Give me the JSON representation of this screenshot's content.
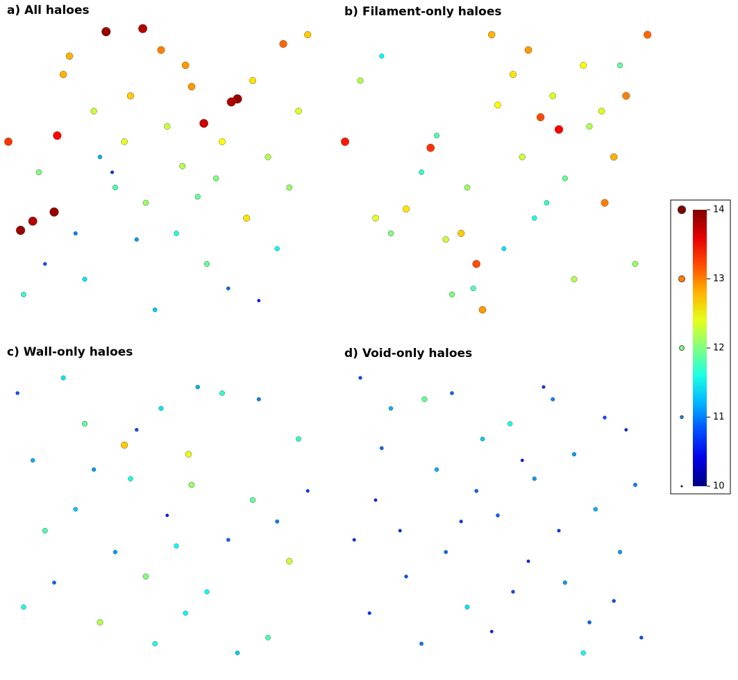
{
  "chart_data": [
    {
      "type": "scatter",
      "title": "a) All haloes",
      "xlim": [
        0,
        100
      ],
      "ylim": [
        0,
        100
      ],
      "colormap": "jet",
      "x": [
        32,
        44,
        75,
        73,
        64,
        16,
        15,
        8,
        4,
        0,
        20,
        50,
        58,
        80,
        90,
        95,
        40,
        28,
        60,
        70,
        85,
        10,
        35,
        45,
        55,
        65,
        25,
        5,
        78,
        88,
        48,
        38,
        68,
        18,
        30,
        52,
        62,
        92,
        12,
        42,
        72,
        82,
        22,
        98,
        34,
        57
      ],
      "y": [
        96,
        97,
        74,
        73,
        66,
        62,
        37,
        34,
        31,
        60,
        88,
        90,
        85,
        80,
        92,
        70,
        75,
        70,
        78,
        60,
        55,
        50,
        45,
        40,
        30,
        20,
        15,
        10,
        35,
        25,
        5,
        60,
        48,
        82,
        55,
        65,
        42,
        45,
        20,
        28,
        12,
        8,
        30,
        95,
        50,
        52
      ],
      "mass": [
        13.9,
        13.8,
        13.9,
        13.8,
        13.7,
        13.5,
        13.9,
        13.8,
        13.9,
        13.3,
        12.8,
        13.0,
        12.9,
        12.6,
        13.1,
        12.4,
        12.7,
        12.3,
        12.9,
        12.5,
        12.2,
        12.0,
        11.8,
        12.1,
        11.6,
        11.9,
        11.4,
        11.7,
        12.6,
        11.5,
        11.3,
        12.4,
        12.0,
        12.8,
        11.2,
        12.3,
        11.9,
        12.1,
        10.8,
        11.1,
        10.9,
        10.6,
        11.0,
        12.7,
        10.7,
        12.2
      ]
    },
    {
      "type": "scatter",
      "title": "b) Filament-only haloes",
      "xlim": [
        0,
        100
      ],
      "ylim": [
        0,
        100
      ],
      "colormap": "jet",
      "x": [
        0,
        28,
        70,
        64,
        85,
        38,
        43,
        45,
        48,
        55,
        60,
        78,
        92,
        99,
        10,
        20,
        33,
        50,
        68,
        88,
        5,
        15,
        40,
        42,
        58,
        72,
        80,
        95,
        25,
        35,
        62,
        75,
        90,
        12,
        30,
        52,
        66,
        84
      ],
      "y": [
        60,
        58,
        64,
        68,
        40,
        30,
        20,
        5,
        95,
        82,
        90,
        85,
        75,
        95,
        35,
        38,
        28,
        72,
        75,
        55,
        80,
        30,
        45,
        12,
        55,
        48,
        65,
        20,
        50,
        10,
        35,
        15,
        85,
        88,
        62,
        25,
        40,
        70
      ],
      "mass": [
        13.4,
        13.3,
        13.5,
        13.2,
        13.0,
        12.7,
        13.2,
        12.9,
        12.8,
        12.6,
        12.9,
        12.5,
        13.0,
        13.1,
        12.4,
        12.6,
        12.3,
        12.5,
        12.4,
        12.8,
        12.2,
        12.0,
        12.1,
        11.8,
        12.3,
        11.9,
        12.2,
        12.1,
        11.7,
        12.0,
        11.6,
        12.2,
        11.9,
        11.5,
        11.8,
        11.4,
        11.7,
        12.4
      ]
    },
    {
      "type": "scatter",
      "title": "c) Wall-only haloes",
      "xlim": [
        0,
        100
      ],
      "ylim": [
        0,
        100
      ],
      "colormap": "jet",
      "x": [
        38,
        59,
        92,
        60,
        25,
        12,
        45,
        70,
        80,
        5,
        30,
        55,
        85,
        95,
        18,
        40,
        65,
        75,
        50,
        8,
        22,
        35,
        48,
        62,
        88,
        15,
        28,
        42,
        58,
        72,
        82,
        98,
        3,
        52
      ],
      "y": [
        73,
        70,
        35,
        60,
        80,
        45,
        30,
        90,
        55,
        20,
        15,
        40,
        10,
        75,
        95,
        62,
        25,
        5,
        85,
        68,
        52,
        38,
        8,
        92,
        48,
        28,
        65,
        78,
        18,
        42,
        88,
        58,
        90,
        50
      ],
      "mass": [
        12.7,
        12.4,
        12.3,
        12.1,
        11.9,
        11.8,
        12.0,
        11.7,
        11.9,
        11.6,
        12.2,
        11.5,
        11.8,
        11.7,
        11.4,
        11.6,
        11.5,
        11.3,
        11.4,
        11.2,
        11.3,
        11.1,
        11.6,
        11.2,
        11.0,
        10.9,
        11.1,
        10.8,
        11.5,
        10.9,
        11.0,
        10.7,
        10.8,
        10.6
      ]
    },
    {
      "type": "scatter",
      "title": "d) Void-only haloes",
      "xlim": [
        0,
        100
      ],
      "ylim": [
        0,
        100
      ],
      "colormap": "jet",
      "x": [
        26,
        54,
        5,
        15,
        35,
        45,
        65,
        75,
        85,
        95,
        10,
        30,
        50,
        70,
        90,
        20,
        40,
        60,
        80,
        3,
        25,
        55,
        78,
        92,
        12,
        38,
        62,
        88,
        48,
        68,
        8,
        33,
        58,
        82,
        97,
        18,
        43,
        72
      ],
      "y": [
        88,
        80,
        95,
        85,
        90,
        75,
        92,
        70,
        82,
        60,
        55,
        65,
        50,
        45,
        38,
        30,
        20,
        35,
        15,
        42,
        8,
        25,
        5,
        78,
        72,
        48,
        62,
        22,
        12,
        88,
        18,
        38,
        68,
        52,
        10,
        45,
        58,
        28
      ],
      "mass": [
        11.9,
        11.6,
        10.8,
        11.2,
        10.9,
        11.3,
        10.7,
        11.1,
        10.8,
        11.0,
        10.6,
        11.2,
        10.9,
        10.7,
        11.1,
        10.8,
        11.4,
        10.6,
        10.9,
        10.7,
        11.0,
        10.8,
        11.5,
        10.6,
        10.9,
        10.7,
        11.1,
        10.8,
        10.6,
        11.0,
        10.7,
        10.9,
        10.6,
        11.2,
        10.8,
        10.7,
        10.9,
        11.1
      ]
    },
    {
      "type": "colorbar",
      "colormap": "jet",
      "lim": [
        10,
        14
      ],
      "ticks": [
        10,
        11,
        12,
        13,
        14
      ]
    }
  ]
}
